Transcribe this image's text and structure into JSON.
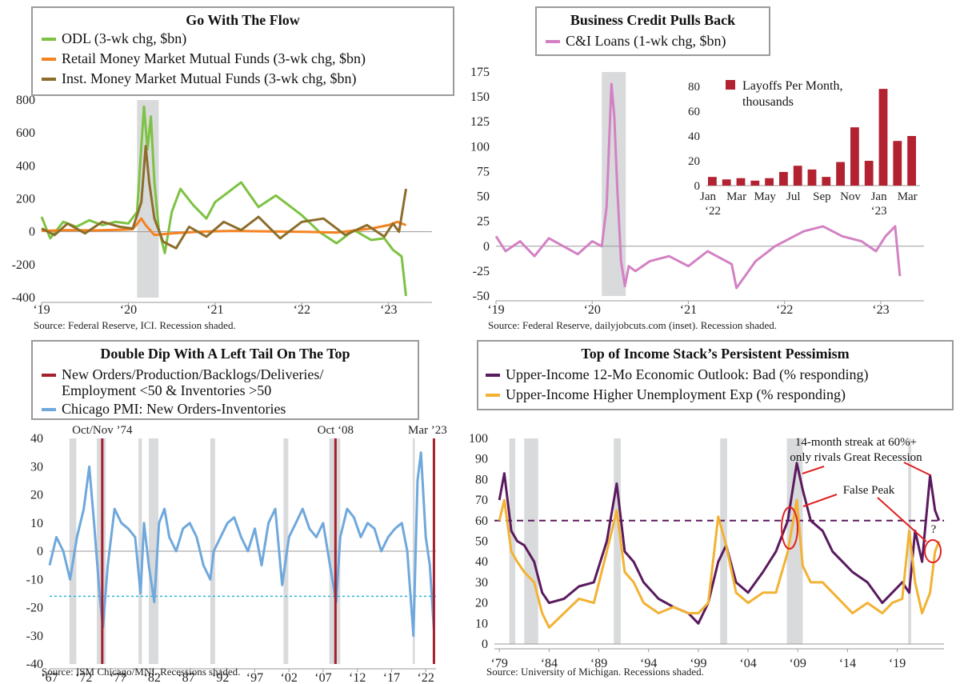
{
  "colors": {
    "odl": "#7dc242",
    "retail": "#f58220",
    "inst": "#8c6d2c",
    "ci": "#d381c3",
    "layoffs": "#b22230",
    "red_marker": "#a5202e",
    "pmi": "#6fa8dc",
    "threshold": "#31b4d9",
    "bad_outlook": "#5a1a5e",
    "unemp_exp": "#f2b233",
    "recession": "#d9dadc",
    "annotation": "#e02020"
  },
  "icons": {
    "legend_line": "line-swatch",
    "legend_bar": "square-swatch"
  },
  "chart_data": [
    {
      "type": "line",
      "title": "Go With The Flow",
      "source": "Source: Federal Reserve, ICI. Recession shaded.",
      "ylim": [
        -400,
        800
      ],
      "yticks": [
        "800",
        "600",
        "400",
        "200",
        "0",
        "-200",
        "-400"
      ],
      "xticks": [
        "‘19",
        "‘20",
        "‘21",
        "‘22",
        "‘23"
      ],
      "xrange": [
        2019.0,
        2023.5
      ],
      "recession": [
        [
          2020.1,
          2020.35
        ]
      ],
      "series": [
        {
          "name": "ODL (3-wk chg, $bn)",
          "color": "#7dc242",
          "x": [
            2019.0,
            2019.1,
            2019.25,
            2019.4,
            2019.55,
            2019.7,
            2019.85,
            2020.0,
            2020.1,
            2020.18,
            2020.22,
            2020.26,
            2020.3,
            2020.35,
            2020.42,
            2020.5,
            2020.6,
            2020.75,
            2020.9,
            2021.0,
            2021.15,
            2021.3,
            2021.5,
            2021.7,
            2021.85,
            2022.0,
            2022.2,
            2022.4,
            2022.6,
            2022.8,
            2022.95,
            2023.05,
            2023.15,
            2023.2
          ],
          "y": [
            90,
            -40,
            60,
            30,
            70,
            40,
            60,
            50,
            120,
            760,
            500,
            700,
            300,
            20,
            -130,
            120,
            260,
            160,
            80,
            180,
            240,
            300,
            150,
            220,
            160,
            100,
            0,
            -70,
            10,
            -50,
            -40,
            -110,
            -150,
            -390
          ]
        },
        {
          "name": "Retail Money Market Mutual Funds (3-wk chg, $bn)",
          "color": "#f58220",
          "x": [
            2019.0,
            2019.3,
            2019.6,
            2019.9,
            2020.05,
            2020.15,
            2020.2,
            2020.3,
            2020.5,
            2020.8,
            2021.2,
            2021.6,
            2022.0,
            2022.4,
            2022.8,
            2023.0,
            2023.1,
            2023.2
          ],
          "y": [
            5,
            10,
            8,
            12,
            15,
            80,
            40,
            -20,
            -10,
            0,
            5,
            2,
            0,
            -5,
            20,
            40,
            60,
            40
          ]
        },
        {
          "name": "Inst. Money Market Mutual Funds (3-wk chg, $bn)",
          "color": "#8c6d2c",
          "x": [
            2019.0,
            2019.15,
            2019.3,
            2019.5,
            2019.7,
            2019.9,
            2020.05,
            2020.15,
            2020.2,
            2020.24,
            2020.3,
            2020.4,
            2020.55,
            2020.7,
            2020.9,
            2021.1,
            2021.3,
            2021.5,
            2021.75,
            2022.0,
            2022.25,
            2022.5,
            2022.75,
            2022.95,
            2023.05,
            2023.12,
            2023.2
          ],
          "y": [
            20,
            -20,
            50,
            -10,
            60,
            30,
            20,
            180,
            520,
            300,
            80,
            -60,
            -100,
            30,
            -30,
            60,
            10,
            90,
            -40,
            60,
            80,
            -20,
            40,
            -30,
            50,
            0,
            260
          ]
        }
      ]
    },
    {
      "type": "line",
      "title": "Business Credit Pulls Back",
      "source": "Source: Federal Reserve,  dailyjobcuts.com (inset). Recession shaded.",
      "ylim": [
        -50,
        175
      ],
      "yticks": [
        "175",
        "150",
        "125",
        "100",
        "75",
        "50",
        "25",
        "0",
        "-25",
        "-50"
      ],
      "xticks": [
        "‘19",
        "‘20",
        "‘21",
        "‘22",
        "‘23"
      ],
      "xrange": [
        2019.0,
        2023.45
      ],
      "recession": [
        [
          2020.1,
          2020.35
        ]
      ],
      "series": [
        {
          "name": "C&I Loans (1-wk chg, $bn)",
          "color": "#d381c3",
          "x": [
            2019.0,
            2019.1,
            2019.25,
            2019.4,
            2019.55,
            2019.7,
            2019.85,
            2020.0,
            2020.1,
            2020.15,
            2020.2,
            2020.23,
            2020.26,
            2020.3,
            2020.34,
            2020.38,
            2020.45,
            2020.6,
            2020.8,
            2021.0,
            2021.2,
            2021.45,
            2021.5,
            2021.7,
            2021.9,
            2022.0,
            2022.2,
            2022.4,
            2022.6,
            2022.8,
            2022.95,
            2023.05,
            2023.15,
            2023.2
          ],
          "y": [
            10,
            -5,
            5,
            -10,
            8,
            0,
            -8,
            5,
            0,
            40,
            163,
            130,
            60,
            -15,
            -40,
            -20,
            -25,
            -15,
            -10,
            -20,
            -5,
            -18,
            -42,
            -15,
            0,
            5,
            15,
            20,
            10,
            5,
            -5,
            10,
            20,
            -30
          ]
        }
      ],
      "inset": {
        "type": "bar",
        "legend": [
          "Layoffs Per Month,",
          "thousands"
        ],
        "categories": [
          "Jan '22",
          "Feb '22",
          "Mar '22",
          "Apr '22",
          "May '22",
          "Jun '22",
          "Jul '22",
          "Aug '22",
          "Sep '22",
          "Oct '22",
          "Nov '22",
          "Dec '22",
          "Jan '23",
          "Feb '23",
          "Mar '23"
        ],
        "values": [
          7,
          5,
          6,
          4,
          6,
          11,
          16,
          13,
          7,
          19,
          47,
          20,
          78,
          36,
          40
        ],
        "ylim": [
          0,
          80
        ],
        "yticks": [
          "80",
          "60",
          "40",
          "20",
          "0"
        ],
        "xticks": [
          "Jan",
          "Mar",
          "May",
          "Jul",
          "Sep",
          "Nov",
          "Jan",
          "Mar"
        ],
        "year_labels": [
          "‘22",
          "‘23"
        ]
      }
    },
    {
      "type": "line",
      "title": "Double Dip With A Left Tail On The Top",
      "source": "Source: ISM Chicago/MNI. Recessions shaded.",
      "legend": [
        "New Orders/Production/Backlogs/Deliveries/",
        "Employment <50 & Inventories >50",
        "Chicago PMI: New Orders-Inventories"
      ],
      "ylim": [
        -40,
        40
      ],
      "yticks": [
        "40",
        "30",
        "20",
        "10",
        "0",
        "-10",
        "-20",
        "-30",
        "-40"
      ],
      "xticks": [
        "‘67",
        "‘72",
        "‘77",
        "‘82",
        "‘87",
        "‘92",
        "‘97",
        "‘02",
        "‘07",
        "‘12",
        "‘17",
        "‘22"
      ],
      "xrange": [
        1967.0,
        2023.5
      ],
      "threshold": -16,
      "recession": [
        [
          1969.9,
          1970.9
        ],
        [
          1973.9,
          1975.2
        ],
        [
          1980.0,
          1980.5
        ],
        [
          1981.5,
          1982.9
        ],
        [
          1990.5,
          1991.2
        ],
        [
          2001.2,
          2001.9
        ],
        [
          2007.9,
          2009.5
        ],
        [
          2020.1,
          2020.4
        ]
      ],
      "markers": [
        {
          "x": 1974.7,
          "label": "Oct/Nov ’74"
        },
        {
          "x": 2008.8,
          "label": "Oct ‘08"
        },
        {
          "x": 2023.2,
          "label": "Mar ’23"
        }
      ],
      "series": [
        {
          "name": "Chicago PMI: New Orders-Inventories",
          "color": "#6fa8dc",
          "x": [
            1967,
            1968,
            1969,
            1970,
            1971,
            1972,
            1972.8,
            1973.5,
            1974.3,
            1974.8,
            1975.5,
            1976.5,
            1977.5,
            1978.5,
            1979.5,
            1980.3,
            1980.8,
            1981.5,
            1982.3,
            1983.0,
            1983.8,
            1984.5,
            1985.5,
            1986.5,
            1987.5,
            1988.5,
            1989.5,
            1990.5,
            1991.0,
            1992.0,
            1993.0,
            1994.0,
            1995.0,
            1996.0,
            1997.0,
            1998.0,
            1999.0,
            2000.0,
            2001.0,
            2002.0,
            2003.0,
            2004.0,
            2005.0,
            2006.0,
            2007.0,
            2008.0,
            2008.9,
            2009.5,
            2010.5,
            2011.5,
            2012.5,
            2013.5,
            2014.5,
            2015.5,
            2016.5,
            2017.5,
            2018.5,
            2019.3,
            2020.2,
            2020.8,
            2021.3,
            2022.0,
            2022.6,
            2023.2
          ],
          "y": [
            -5,
            5,
            0,
            -10,
            5,
            15,
            30,
            10,
            -15,
            -27,
            -5,
            15,
            10,
            8,
            5,
            -15,
            10,
            -5,
            -18,
            10,
            15,
            5,
            0,
            8,
            10,
            5,
            -5,
            -10,
            0,
            5,
            10,
            12,
            5,
            0,
            8,
            -5,
            10,
            15,
            -12,
            5,
            10,
            15,
            8,
            5,
            10,
            -5,
            -18,
            5,
            15,
            12,
            5,
            10,
            8,
            0,
            5,
            8,
            10,
            0,
            -30,
            25,
            35,
            5,
            -5,
            -28
          ]
        }
      ]
    },
    {
      "type": "line",
      "title": "Top of Income Stack’s Persistent Pessimism",
      "source": "Source: University of Michigan. Recessions shaded.",
      "ylim": [
        0,
        100
      ],
      "yticks": [
        "100",
        "90",
        "80",
        "70",
        "60",
        "50",
        "40",
        "30",
        "20",
        "10",
        "0"
      ],
      "xticks": [
        "‘79",
        "‘84",
        "‘89",
        "‘94",
        "‘99",
        "‘04",
        "‘09",
        "‘14",
        "‘19"
      ],
      "xrange": [
        1978.5,
        2023.7
      ],
      "reference_line": 60,
      "recession": [
        [
          1980.0,
          1980.6
        ],
        [
          1981.5,
          1982.9
        ],
        [
          1990.5,
          1991.2
        ],
        [
          2001.2,
          2001.9
        ],
        [
          2007.9,
          2009.5
        ],
        [
          2020.1,
          2020.4
        ]
      ],
      "annotations": [
        "14-month streak at 60%+",
        "only rivals Great Recession",
        "False Peak",
        "?"
      ],
      "series": [
        {
          "name": "Upper-Income 12-Mo Economic Outlook: Bad (% responding)",
          "color": "#5a1a5e",
          "x": [
            1979.0,
            1979.5,
            1980.2,
            1980.8,
            1981.5,
            1982.5,
            1983.3,
            1984.0,
            1985.5,
            1987.0,
            1988.5,
            1989.8,
            1990.8,
            1991.6,
            1992.5,
            1993.5,
            1995.0,
            1996.5,
            1998.0,
            1999.0,
            2000.0,
            2001.0,
            2001.8,
            2002.8,
            2004.0,
            2005.5,
            2006.8,
            2008.0,
            2008.9,
            2009.5,
            2010.3,
            2011.5,
            2012.5,
            2013.5,
            2014.5,
            2016.0,
            2017.5,
            2018.5,
            2019.5,
            2020.2,
            2020.8,
            2021.5,
            2022.3,
            2022.8,
            2023.2
          ],
          "y": [
            70,
            83,
            55,
            50,
            48,
            40,
            25,
            20,
            22,
            28,
            30,
            50,
            78,
            45,
            40,
            30,
            22,
            18,
            15,
            10,
            20,
            40,
            48,
            30,
            25,
            35,
            45,
            60,
            88,
            75,
            60,
            55,
            45,
            40,
            35,
            30,
            20,
            25,
            30,
            25,
            55,
            40,
            82,
            65,
            60
          ]
        },
        {
          "name": "Upper-Income Higher Unemployment Exp (% responding)",
          "color": "#f2b233",
          "x": [
            1979.0,
            1979.5,
            1980.2,
            1980.8,
            1981.5,
            1982.5,
            1983.3,
            1984.0,
            1985.5,
            1987.0,
            1988.5,
            1989.8,
            1990.8,
            1991.6,
            1992.5,
            1993.5,
            1995.0,
            1996.5,
            1998.0,
            1999.0,
            2000.0,
            2001.0,
            2001.8,
            2002.8,
            2004.0,
            2005.5,
            2006.8,
            2008.0,
            2008.9,
            2009.5,
            2010.3,
            2011.5,
            2012.5,
            2013.5,
            2014.5,
            2016.0,
            2017.5,
            2018.5,
            2019.5,
            2020.2,
            2020.8,
            2021.5,
            2022.3,
            2022.8,
            2023.2
          ],
          "y": [
            60,
            70,
            45,
            40,
            35,
            30,
            15,
            8,
            15,
            22,
            20,
            45,
            65,
            35,
            30,
            20,
            15,
            18,
            15,
            15,
            20,
            62,
            48,
            25,
            20,
            25,
            25,
            45,
            70,
            38,
            30,
            30,
            25,
            20,
            15,
            20,
            15,
            20,
            22,
            55,
            30,
            15,
            25,
            45,
            50
          ]
        }
      ]
    }
  ]
}
